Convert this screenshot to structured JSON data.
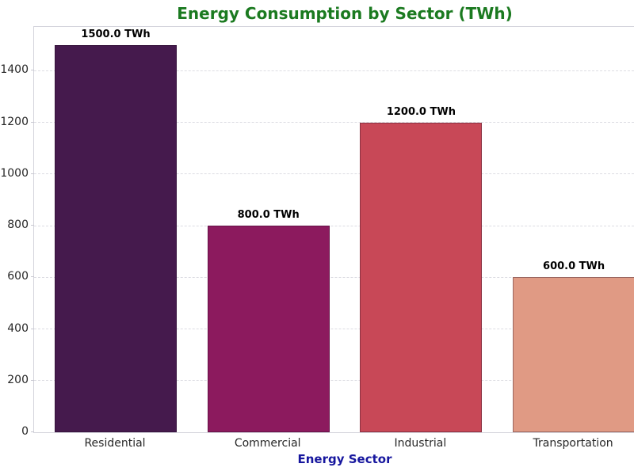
{
  "chart_data": {
    "type": "bar",
    "title": "Energy Consumption by Sector (TWh)",
    "xlabel": "Energy Sector",
    "ylabel": "",
    "categories": [
      "Residential",
      "Commercial",
      "Industrial",
      "Transportation"
    ],
    "values": [
      1500,
      800,
      1200,
      600
    ],
    "value_labels": [
      "1500.0 TWh",
      "800.0 TWh",
      "1200.0 TWh",
      "600.0 TWh"
    ],
    "bar_colors": [
      "#451a4d",
      "#8c1a5e",
      "#c84857",
      "#e09a84"
    ],
    "yticks": [
      0,
      200,
      400,
      600,
      800,
      1000,
      1200,
      1400
    ],
    "ylim": [
      0,
      1570
    ],
    "grid": "horizontal-dashed",
    "legend": "none",
    "title_color": "#1b7a20",
    "xlabel_color": "#16169e",
    "tick_label_color": "#262626",
    "value_label_color": "#000000",
    "background_color": "#ffffff"
  }
}
